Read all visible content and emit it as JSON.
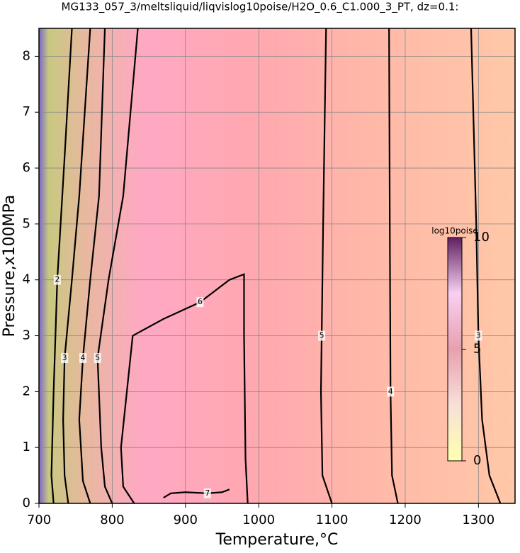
{
  "chart_data": {
    "type": "contour",
    "title": "MG133_057_3/meltsliquid/liqvislog10poise/H2O_0.6_C1.000_3_PT, dz=0.1:",
    "x_label": "Temperature,°C",
    "y_label": "Pressure,x100MPa",
    "xlim": [
      700,
      1350
    ],
    "ylim": [
      0,
      8.5
    ],
    "xticks": [
      700,
      800,
      900,
      1000,
      1100,
      1200,
      1300
    ],
    "yticks": [
      0,
      1,
      2,
      3,
      4,
      5,
      6,
      7,
      8
    ],
    "grid": true,
    "contours": [
      {
        "level": 2,
        "x": [
          720,
          717,
          720,
          725,
          735,
          745
        ],
        "y": [
          0,
          0.5,
          2,
          4,
          6.2,
          8.5
        ]
      },
      {
        "level": 3,
        "x": [
          740,
          735,
          733,
          735,
          745,
          755,
          770
        ],
        "y": [
          0,
          0.5,
          1.5,
          2.6,
          4,
          5.5,
          8.5
        ]
      },
      {
        "level": 4,
        "x": [
          770,
          760,
          755,
          760,
          770,
          782,
          790
        ],
        "y": [
          0,
          0.4,
          1.5,
          2.6,
          4,
          5.5,
          8.5
        ]
      },
      {
        "level": 5,
        "x": [
          800,
          790,
          785,
          780,
          795,
          815,
          835
        ],
        "y": [
          0,
          0.3,
          1,
          2.6,
          4,
          5.5,
          8.5
        ]
      },
      {
        "level": 6,
        "x": [
          830,
          815,
          812,
          820,
          828,
          870,
          920,
          960,
          980,
          980,
          982,
          985
        ],
        "y": [
          0,
          0.3,
          1,
          2,
          3,
          3.3,
          3.6,
          4,
          4.1,
          3,
          0.8,
          0
        ]
      },
      {
        "level": 7,
        "x": [
          870,
          880,
          900,
          930,
          950,
          960
        ],
        "y": [
          0.1,
          0.18,
          0.2,
          0.18,
          0.2,
          0.25
        ]
      },
      {
        "level": 5,
        "x": [
          1100,
          1087,
          1085,
          1086,
          1088,
          1092
        ],
        "y": [
          0,
          0.5,
          2,
          3,
          5,
          8.5
        ]
      },
      {
        "level": 4,
        "x": [
          1190,
          1182,
          1180,
          1179,
          1178
        ],
        "y": [
          0,
          0.5,
          2,
          5,
          8.5
        ]
      },
      {
        "level": 3,
        "x": [
          1330,
          1315,
          1305,
          1300,
          1297,
          1293,
          1290
        ],
        "y": [
          0,
          0.5,
          1.5,
          3,
          5,
          7,
          8.5
        ]
      }
    ],
    "colorbar": {
      "label": "log10poise",
      "lim": [
        0,
        10
      ],
      "ticks": [
        0,
        5,
        10
      ]
    }
  }
}
